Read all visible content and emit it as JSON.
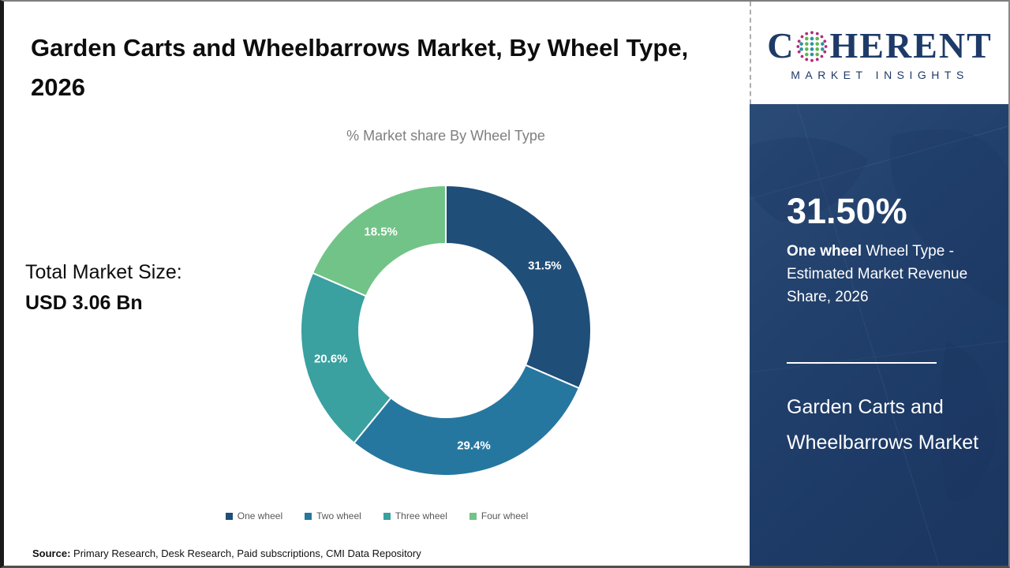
{
  "header": {
    "title": "Garden Carts and Wheelbarrows Market, By Wheel Type, 2026"
  },
  "logo": {
    "word_start": "C",
    "word_end": "HERENT",
    "subtitle": "MARKET INSIGHTS",
    "brand_color": "#1e3a68",
    "globe_dot_colors": {
      "outer": "#b02d7b",
      "teal": "#2e94a3",
      "green": "#63b74d"
    }
  },
  "main": {
    "total_label": "Total Market Size:",
    "total_value": "USD 3.06 Bn"
  },
  "chart_data": {
    "type": "pie",
    "donut": true,
    "title": "% Market share By Wheel Type",
    "categories": [
      "One wheel",
      "Two wheel",
      "Three wheel",
      "Four wheel"
    ],
    "values": [
      31.5,
      29.4,
      20.6,
      18.5
    ],
    "labels": [
      "31.5%",
      "29.4%",
      "20.6%",
      "18.5%"
    ],
    "colors": [
      "#1F4E79",
      "#26779F",
      "#3AA0A0",
      "#72C387"
    ],
    "start_angle_deg": 0,
    "direction": "clockwise",
    "inner_radius_ratio": 0.6,
    "legend_position": "bottom",
    "label_color": "#ffffff"
  },
  "sidebar": {
    "headline_value": "31.50%",
    "desc_bold": "One wheel",
    "desc_rest": "Wheel Type - Estimated Market Revenue Share, 2026",
    "market_name": "Garden Carts and Wheelbarrows Market"
  },
  "footer": {
    "source_label": "Source:",
    "source_text": "Primary Research, Desk Research, Paid subscriptions, CMI Data Repository"
  }
}
